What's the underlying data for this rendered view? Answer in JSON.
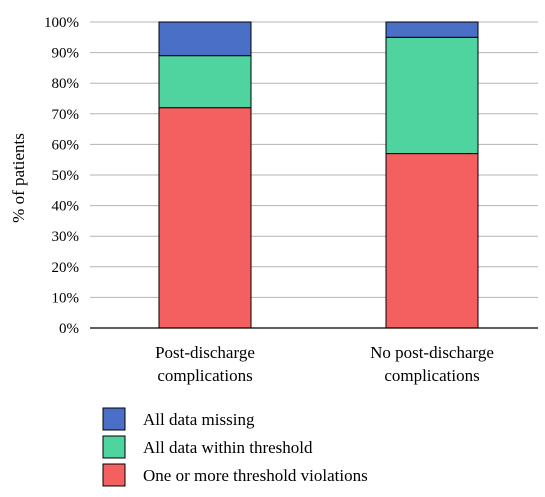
{
  "chart_data": {
    "type": "bar",
    "stacked": true,
    "categories": [
      [
        "Post-discharge",
        "complications"
      ],
      [
        "No post-discharge",
        "complications"
      ]
    ],
    "series": [
      {
        "name": "One or more threshold violations",
        "values": [
          72,
          57
        ],
        "color": "#f45f5f"
      },
      {
        "name": "All data within threshold",
        "values": [
          17,
          38
        ],
        "color": "#4fd4a0"
      },
      {
        "name": "All data missing",
        "values": [
          11,
          5
        ],
        "color": "#4a6fc7"
      }
    ],
    "ylabel": "% of patients",
    "ylim": [
      0,
      100
    ],
    "yticks": [
      0,
      10,
      20,
      30,
      40,
      50,
      60,
      70,
      80,
      90,
      100
    ],
    "ytick_format": "{v}%",
    "grid": true,
    "legend_order": [
      "All data missing",
      "All data within threshold",
      "One or more threshold violations"
    ],
    "legend_placement": "bottom"
  }
}
